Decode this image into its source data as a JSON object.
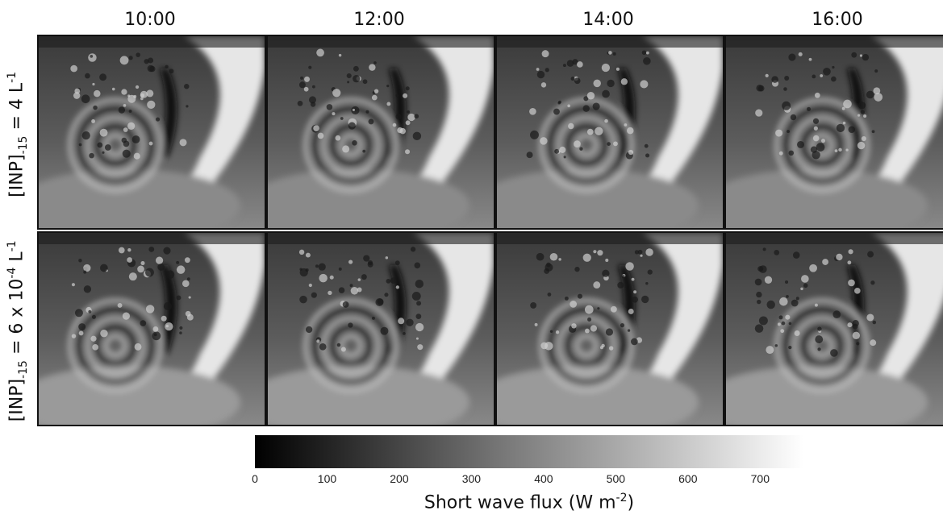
{
  "columns": [
    "10:00",
    "12:00",
    "14:00",
    "16:00"
  ],
  "rows": [
    {
      "label_main": "[INP]",
      "label_sub": "-15",
      "label_mid": " = 4 L",
      "label_sup": "-1"
    },
    {
      "label_main": "[INP]",
      "label_sub": "-15",
      "label_mid": " = 6 x 10",
      "label_sup1": "-4",
      "label_tail": " L",
      "label_sup": "-1"
    }
  ],
  "colorbar": {
    "ticks": [
      "0",
      "100",
      "200",
      "300",
      "400",
      "500",
      "600",
      "700"
    ],
    "tick_values": [
      0,
      100,
      200,
      300,
      400,
      500,
      600,
      700
    ],
    "max_value": 760,
    "title_main": "Short wave flux (W m",
    "title_sup": "-2",
    "title_tail": ")",
    "colors": {
      "low": "#000000",
      "high": "#ffffff"
    }
  }
}
